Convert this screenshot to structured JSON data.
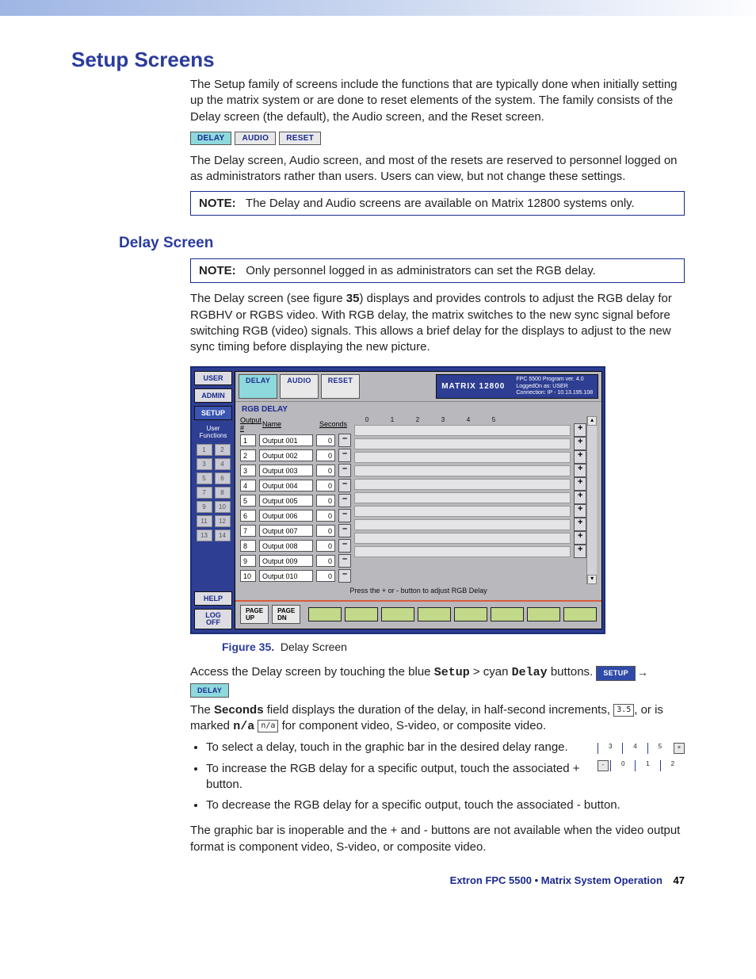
{
  "heading": "Setup Screens",
  "intro1": "The Setup family of screens include the functions that are typically done when initially setting up the matrix system or are done to reset elements of the system. The family consists of the Delay screen (the default), the Audio screen, and the Reset screen.",
  "tab_labels": {
    "delay": "DELAY",
    "audio": "AUDIO",
    "reset": "RESET"
  },
  "intro2": "The Delay screen, Audio screen, and most of the resets are reserved to personnel logged on as administrators rather than users. Users can view, but not change these settings.",
  "note1_label": "NOTE:",
  "note1_text": "The Delay and Audio screens are available on Matrix 12800 systems only.",
  "subheading": "Delay Screen",
  "note2_label": "NOTE:",
  "note2_text": "Only personnel logged in as administrators can set the RGB delay.",
  "para1a": "The Delay screen (see figure ",
  "para1b": "35",
  "para1c": ") displays and provides controls to adjust the RGB delay for RGBHV or RGBS video. With RGB delay, the matrix switches to the new sync signal before switching RGB (video) signals. This allows a brief delay for the displays to adjust to the new sync timing before displaying the new picture.",
  "screen": {
    "sidebar": {
      "buttons": [
        "USER",
        "ADMIN",
        "SETUP"
      ],
      "active_index": 2,
      "user_fn_label": "User\nFunctions",
      "numbers": [
        "1",
        "2",
        "3",
        "4",
        "5",
        "6",
        "7",
        "8",
        "9",
        "10",
        "11",
        "12",
        "13",
        "14"
      ],
      "help": "HELP",
      "logoff": "LOG\nOFF"
    },
    "tabs": {
      "delay": "DELAY",
      "audio": "AUDIO",
      "reset": "RESET",
      "active": 0
    },
    "status": {
      "matrix": "MATRIX 12800",
      "line1": "FPC 5500 Program  ver. 4.0",
      "line2": "LoggedOn as: USER",
      "line3": "Connection: IP - 10.13.195.108"
    },
    "rgb_title": "RGB DELAY",
    "columns": {
      "output": "Output #",
      "name": "Name",
      "seconds": "Seconds"
    },
    "scale_ticks": [
      "0",
      "1",
      "2",
      "3",
      "4",
      "5"
    ],
    "rows": [
      {
        "idx": "1",
        "name": "Output 001",
        "sec": "0"
      },
      {
        "idx": "2",
        "name": "Output 002",
        "sec": "0"
      },
      {
        "idx": "3",
        "name": "Output 003",
        "sec": "0"
      },
      {
        "idx": "4",
        "name": "Output 004",
        "sec": "0"
      },
      {
        "idx": "5",
        "name": "Output 005",
        "sec": "0"
      },
      {
        "idx": "6",
        "name": "Output 006",
        "sec": "0"
      },
      {
        "idx": "7",
        "name": "Output 007",
        "sec": "0"
      },
      {
        "idx": "8",
        "name": "Output 008",
        "sec": "0"
      },
      {
        "idx": "9",
        "name": "Output 009",
        "sec": "0"
      },
      {
        "idx": "10",
        "name": "Output 010",
        "sec": "0"
      }
    ],
    "minus": "–",
    "plus": "+",
    "hint": "Press the + or  -  button to adjust RGB Delay",
    "page_up": "PAGE UP",
    "page_dn": "PAGE DN",
    "scroll_up": "▴",
    "scroll_dn": "▾",
    "preset_slots": 8
  },
  "fig_label": "Figure 35.",
  "fig_caption": "Delay Screen",
  "access_a": "Access the Delay screen by touching the blue ",
  "access_setup": "Setup",
  "access_gt": " > cyan ",
  "access_delay": "Delay",
  "access_b": " buttons.",
  "chip_setup": "SETUP",
  "chip_delay": "DELAY",
  "seconds_a": "The ",
  "seconds_field": "Seconds",
  "seconds_b": " field displays the duration of the delay, in half-second increments, ",
  "chip_35": "3.5",
  "seconds_c": ", or is marked ",
  "na_mono": "n/a",
  "chip_na": "n/a",
  "seconds_d": " for component video, S-video, or composite video.",
  "bullets": [
    "To select a delay, touch in the graphic bar in the desired delay range.",
    "To increase the RGB delay for a specific output, touch the associated + button.",
    "To decrease the RGB delay for a specific output, touch the associated - button."
  ],
  "illus": {
    "top": [
      "3",
      "4",
      "5"
    ],
    "top_btn": "+",
    "bot": [
      "0",
      "1",
      "2"
    ],
    "bot_btn": "-"
  },
  "closing": "The graphic bar is inoperable and the + and - buttons are not available when the video output format is component video, S-video, or composite video.",
  "footer_text": "Extron FPC 5500 • Matrix System Operation",
  "footer_page": "47",
  "colors": {
    "brand_blue": "#2a3b9e",
    "panel_blue": "#2e3e92",
    "cyan_tab": "#8ed9dc",
    "slot_green": "#c2d98a",
    "divider_orange": "#d95b3a"
  }
}
